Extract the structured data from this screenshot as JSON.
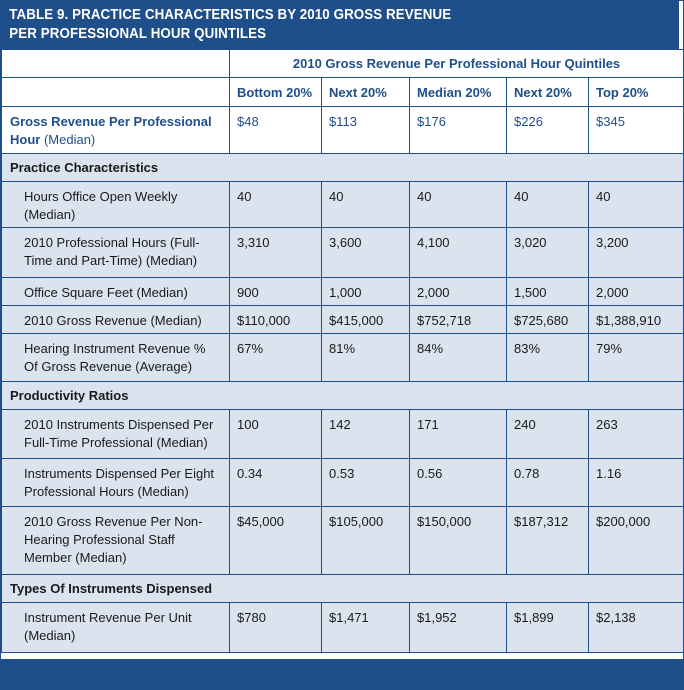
{
  "title": {
    "line1": "TABLE 9. PRACTICE CHARACTERISTICS BY 2010 GROSS REVENUE",
    "line2": "PER PROFESSIONAL HOUR QUINTILES"
  },
  "group_header": "2010 Gross Revenue Per Professional Hour Quintiles",
  "columns": [
    "Bottom 20%",
    "Next 20%",
    "Median 20%",
    "Next 20%",
    "Top 20%"
  ],
  "key_row": {
    "label_bold_1": "Gross Revenue Per Professional",
    "label_bold_2": "Hour",
    "label_note": " (Median)",
    "values": [
      "$48",
      "$113",
      "$176",
      "$226",
      "$345"
    ]
  },
  "sections": [
    {
      "title": "Practice Characteristics",
      "rows": [
        {
          "label_1": "Hours Office Open Weekly",
          "label_2": "(Median)",
          "values": [
            "40",
            "40",
            "40",
            "40",
            "40"
          ]
        },
        {
          "label_1": "2010 Professional Hours (Full-",
          "label_2": "Time and Part-Time) (Median)",
          "values": [
            "3,310",
            "3,600",
            "4,100",
            "3,020",
            "3,200"
          ]
        },
        {
          "label_1": "Office Square Feet (Median)",
          "label_2": "",
          "values": [
            "900",
            "1,000",
            "2,000",
            "1,500",
            "2,000"
          ]
        },
        {
          "label_1": "2010 Gross Revenue (Median)",
          "label_2": "",
          "values": [
            "$110,000",
            "$415,000",
            "$752,718",
            "$725,680",
            "$1,388,910"
          ]
        },
        {
          "label_1": "Hearing Instrument Revenue %",
          "label_2": "Of Gross Revenue (Average)",
          "values": [
            "67%",
            "81%",
            "84%",
            "83%",
            "79%"
          ]
        }
      ]
    },
    {
      "title": "Productivity Ratios",
      "rows": [
        {
          "label_1": "2010 Instruments Dispensed Per",
          "label_2": "Full-Time Professional (Median)",
          "values": [
            "100",
            "142",
            "171",
            "240",
            "263"
          ]
        },
        {
          "label_1": "Instruments Dispensed Per Eight",
          "label_2": "Professional Hours (Median)",
          "values": [
            "0.34",
            "0.53",
            "0.56",
            "0.78",
            "1.16"
          ]
        },
        {
          "label_1": "2010 Gross Revenue Per Non-",
          "label_2": "Hearing Professional Staff",
          "label_3": "Member (Median)",
          "values": [
            "$45,000",
            "$105,000",
            "$150,000",
            "$187,312",
            "$200,000"
          ]
        }
      ]
    },
    {
      "title": "Types Of Instruments Dispensed",
      "rows": [
        {
          "label_1": "Instrument Revenue Per Unit",
          "label_2": "(Median)",
          "values": [
            "$780",
            "$1,471",
            "$1,952",
            "$1,899",
            "$2,138"
          ]
        }
      ]
    }
  ],
  "colors": {
    "header_blue": "#1f4f8a",
    "shade": "#dbe3ee"
  }
}
